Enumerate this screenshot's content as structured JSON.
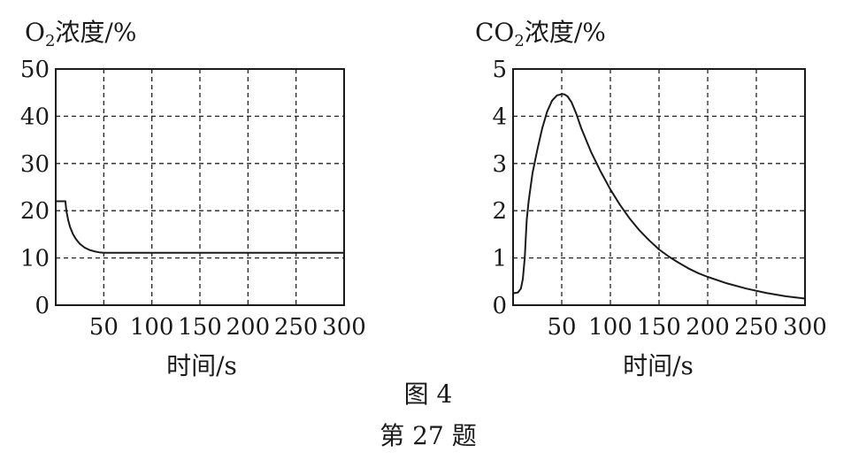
{
  "chart_data": [
    {
      "type": "line",
      "ylabel_main": "O",
      "ylabel_sub": "2",
      "ylabel_rest": "浓度/%",
      "xlabel": "时间/s",
      "xlim": [
        0,
        300
      ],
      "ylim": [
        0,
        50
      ],
      "xticks": [
        50,
        100,
        150,
        200,
        250,
        300
      ],
      "yticks": [
        0,
        10,
        20,
        30,
        40,
        50
      ],
      "y_origin_label": "0",
      "grid": true,
      "series": [
        {
          "x": [
            0,
            2,
            8,
            10,
            11,
            13,
            15,
            18,
            21,
            25,
            30,
            35,
            40,
            45,
            50,
            60,
            80,
            100,
            150,
            200,
            250,
            300
          ],
          "y": [
            22,
            22,
            22,
            22,
            20,
            18,
            16.5,
            15,
            14,
            13,
            12.2,
            11.7,
            11.4,
            11.2,
            11.1,
            11.1,
            11.1,
            11.1,
            11.1,
            11.1,
            11.1,
            11.1
          ]
        }
      ]
    },
    {
      "type": "line",
      "ylabel_main": "CO",
      "ylabel_sub": "2",
      "ylabel_rest": "浓度/%",
      "xlabel": "时间/s",
      "xlim": [
        0,
        300
      ],
      "ylim": [
        0,
        5
      ],
      "xticks": [
        50,
        100,
        150,
        200,
        250,
        300
      ],
      "yticks": [
        0,
        1,
        2,
        3,
        4,
        5
      ],
      "y_origin_label": "0",
      "grid": true,
      "series": [
        {
          "x": [
            0,
            5,
            8,
            10,
            12,
            14,
            16,
            18,
            20,
            25,
            30,
            35,
            40,
            45,
            50,
            53,
            56,
            60,
            65,
            70,
            80,
            90,
            100,
            110,
            120,
            130,
            140,
            150,
            160,
            170,
            180,
            190,
            200,
            220,
            240,
            260,
            280,
            300
          ],
          "y": [
            0.25,
            0.27,
            0.35,
            0.55,
            1.0,
            1.8,
            2.2,
            2.5,
            2.8,
            3.3,
            3.75,
            4.1,
            4.33,
            4.44,
            4.47,
            4.46,
            4.42,
            4.3,
            4.05,
            3.75,
            3.25,
            2.83,
            2.45,
            2.12,
            1.83,
            1.58,
            1.37,
            1.18,
            1.03,
            0.9,
            0.78,
            0.68,
            0.6,
            0.46,
            0.35,
            0.26,
            0.19,
            0.14
          ]
        }
      ]
    }
  ],
  "caption": {
    "figure": "图 4",
    "question": "第 27 题"
  }
}
